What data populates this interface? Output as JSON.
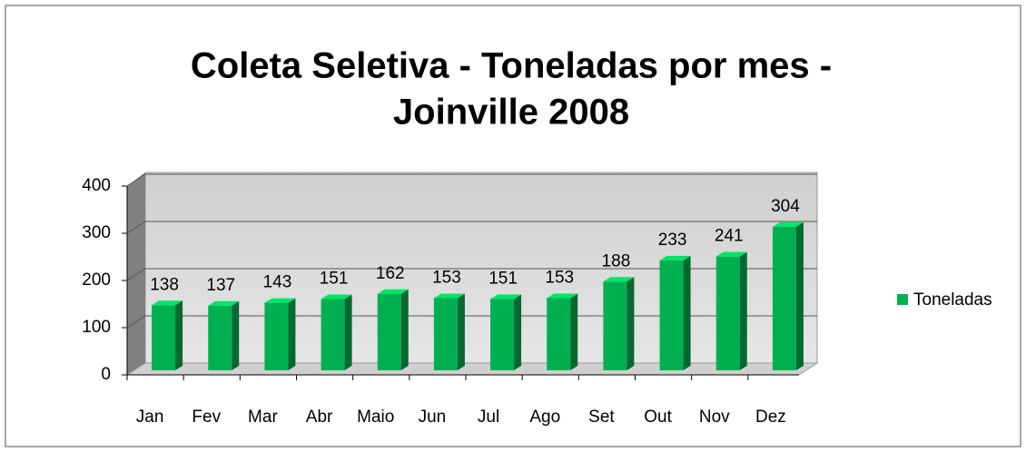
{
  "chart_data": {
    "type": "bar3d",
    "title": [
      "Coleta Seletiva - Toneladas por mes -",
      "Joinville 2008"
    ],
    "categories": [
      "Jan",
      "Fev",
      "Mar",
      "Abr",
      "Maio",
      "Jun",
      "Jul",
      "Ago",
      "Set",
      "Out",
      "Nov",
      "Dez"
    ],
    "series": [
      {
        "name": "Toneladas",
        "color": "#00b050",
        "values": [
          138,
          137,
          143,
          151,
          162,
          153,
          151,
          153,
          188,
          233,
          241,
          304
        ]
      }
    ],
    "ylim": [
      0,
      400
    ],
    "yticks": [
      0,
      100,
      200,
      300,
      400
    ],
    "grid": true,
    "legend": "right"
  }
}
